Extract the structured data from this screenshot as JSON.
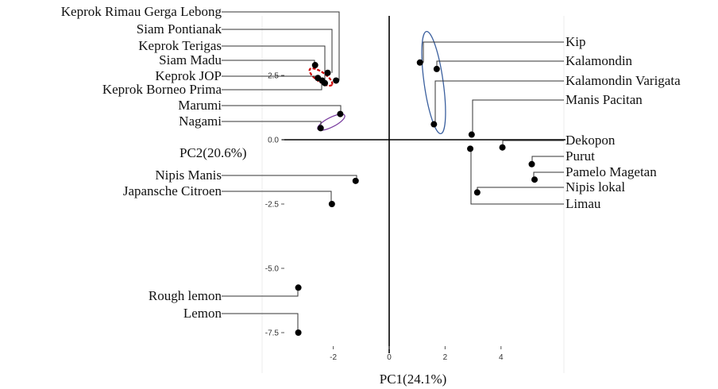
{
  "chart_data": {
    "type": "scatter",
    "xlabel": "PC1(24.1%)",
    "ylabel": "PC2(20.6%)",
    "xlim": [
      -4.6,
      6.3
    ],
    "ylim": [
      -8.8,
      4.0
    ],
    "x_ticks": [
      -2,
      0,
      2,
      4
    ],
    "y_ticks": [
      2.5,
      0.0,
      -2.5,
      -5.0,
      -7.5
    ],
    "x_tick_labels": [
      "-2",
      "0",
      "2",
      "4"
    ],
    "y_tick_labels": [
      "2.5",
      "0.0",
      "-2.5",
      "-5.0",
      "-7.5"
    ],
    "grid": false,
    "points": [
      {
        "label": "Keprok Rimau Gerga Lebong",
        "x": -1.9,
        "y": 2.3
      },
      {
        "label": "Siam Pontianak",
        "x": -2.2,
        "y": 2.6
      },
      {
        "label": "Keprok Terigas",
        "x": -2.4,
        "y": 2.3
      },
      {
        "label": "Siam Madu",
        "x": -2.65,
        "y": 2.9
      },
      {
        "label": "Keprok JOP",
        "x": -2.55,
        "y": 2.4
      },
      {
        "label": "Keprok Borneo Prima",
        "x": -2.3,
        "y": 2.2
      },
      {
        "label": "Marumi",
        "x": -1.75,
        "y": 1.0
      },
      {
        "label": "Nagami",
        "x": -2.45,
        "y": 0.45
      },
      {
        "label": "Kip",
        "x": 1.1,
        "y": 3.0
      },
      {
        "label": "Kalamondin",
        "x": 1.7,
        "y": 2.75
      },
      {
        "label": "Kalamondin Varigata",
        "x": 1.6,
        "y": 0.6
      },
      {
        "label": "Manis Pacitan",
        "x": 2.95,
        "y": 0.2
      },
      {
        "label": "Dekopon",
        "x": 4.05,
        "y": -0.3
      },
      {
        "label": "Limau",
        "x": 2.9,
        "y": -0.35
      },
      {
        "label": "Purut",
        "x": 5.1,
        "y": -0.95
      },
      {
        "label": "Pamelo Magetan",
        "x": 5.2,
        "y": -1.55
      },
      {
        "label": "Nipis lokal",
        "x": 3.15,
        "y": -2.05
      },
      {
        "label": "Nipis Manis",
        "x": -1.2,
        "y": -1.6
      },
      {
        "label": "Japansche Citroen",
        "x": -2.05,
        "y": -2.5
      },
      {
        "label": "Rough lemon",
        "x": -3.25,
        "y": -5.75
      },
      {
        "label": "Lemon",
        "x": -3.25,
        "y": -7.5
      }
    ],
    "clusters": [
      {
        "members": [
          "Keprok Rimau Gerga Lebong",
          "Siam Pontianak",
          "Keprok Terigas",
          "Siam Madu",
          "Keprok JOP",
          "Keprok Borneo Prima"
        ],
        "color": "#cc0000",
        "style": "dashed"
      },
      {
        "members": [
          "Marumi",
          "Nagami"
        ],
        "color": "#7b3fa0",
        "style": "solid"
      },
      {
        "members": [
          "Kip",
          "Kalamondin",
          "Kalamondin Varigata"
        ],
        "color": "#3a5f9e",
        "style": "solid"
      }
    ]
  }
}
